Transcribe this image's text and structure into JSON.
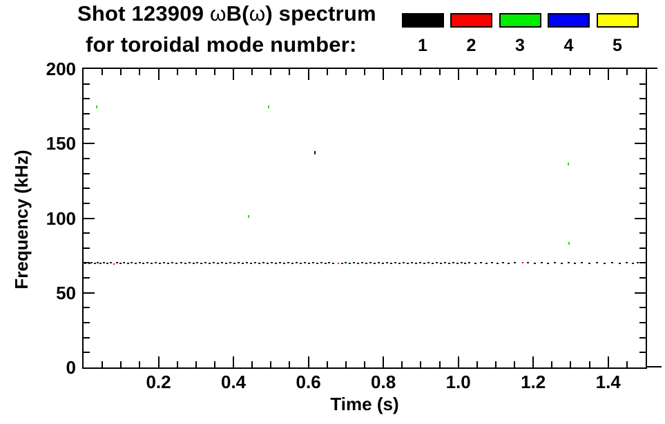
{
  "title": {
    "line1_pre": "Shot 123909 ",
    "line1_omega1": "ω",
    "line1_mid": "B(",
    "line1_omega2": "ω",
    "line1_post": ") spectrum",
    "line2": "for toroidal mode number:"
  },
  "legend": {
    "entries": [
      {
        "label": "1",
        "color": "#000000"
      },
      {
        "label": "2",
        "color": "#ff0000"
      },
      {
        "label": "3",
        "color": "#00ee00"
      },
      {
        "label": "4",
        "color": "#0000ff"
      },
      {
        "label": "5",
        "color": "#ffff00"
      }
    ]
  },
  "chart_data": {
    "type": "scatter",
    "title": "Shot 123909 ωB(ω) spectrum for toroidal mode number: 1 2 3 4 5",
    "xlabel": "Time (s)",
    "ylabel": "Frequency (kHz)",
    "xlim": [
      0,
      1.5
    ],
    "ylim": [
      0,
      200
    ],
    "x_major_ticks": [
      0.2,
      0.4,
      0.6,
      0.8,
      1.0,
      1.2,
      1.4
    ],
    "x_tick_labels": [
      "0.2",
      "0.4",
      "0.6",
      "0.8",
      "1.0",
      "1.2",
      "1.4"
    ],
    "x_minor_step": 0.05,
    "y_major_ticks": [
      0,
      50,
      100,
      150,
      200
    ],
    "y_tick_labels": [
      "0",
      "50",
      "100",
      "150",
      "200"
    ],
    "y_minor_step": 10,
    "grid": false,
    "legend_position": "top-right",
    "series": [
      {
        "name": "toroidal mode n=1",
        "color": "#1a1a1a",
        "marker": [
          3,
          2
        ],
        "points": [
          [
            0.004,
            69.8
          ],
          [
            0.01,
            70.0
          ],
          [
            0.016,
            69.7
          ],
          [
            0.022,
            70.1
          ],
          [
            0.03,
            69.9
          ],
          [
            0.037,
            70.0
          ],
          [
            0.046,
            69.8
          ],
          [
            0.055,
            70.1
          ],
          [
            0.064,
            69.9
          ],
          [
            0.072,
            70.0
          ],
          [
            0.09,
            70.1
          ],
          [
            0.099,
            69.9
          ],
          [
            0.108,
            70.0
          ],
          [
            0.118,
            69.8
          ],
          [
            0.128,
            70.1
          ],
          [
            0.139,
            69.9
          ],
          [
            0.15,
            70.0
          ],
          [
            0.16,
            69.6
          ],
          [
            0.17,
            70.1
          ],
          [
            0.181,
            69.9
          ],
          [
            0.192,
            70.0
          ],
          [
            0.203,
            69.8
          ],
          [
            0.214,
            70.1
          ],
          [
            0.225,
            69.9
          ],
          [
            0.237,
            70.0
          ],
          [
            0.248,
            69.7
          ],
          [
            0.26,
            70.1
          ],
          [
            0.271,
            69.9
          ],
          [
            0.282,
            70.0
          ],
          [
            0.293,
            69.8
          ],
          [
            0.304,
            70.1
          ],
          [
            0.315,
            69.9
          ],
          [
            0.326,
            70.0
          ],
          [
            0.337,
            69.7
          ],
          [
            0.348,
            70.1
          ],
          [
            0.359,
            69.9
          ],
          [
            0.37,
            70.0
          ],
          [
            0.381,
            69.8
          ],
          [
            0.392,
            70.1
          ],
          [
            0.403,
            69.9
          ],
          [
            0.414,
            70.0
          ],
          [
            0.425,
            69.7
          ],
          [
            0.436,
            70.1
          ],
          [
            0.447,
            69.9
          ],
          [
            0.458,
            70.0
          ],
          [
            0.469,
            69.8
          ],
          [
            0.48,
            70.1
          ],
          [
            0.491,
            69.9
          ],
          [
            0.502,
            70.0
          ],
          [
            0.513,
            69.7
          ],
          [
            0.524,
            70.1
          ],
          [
            0.535,
            69.9
          ],
          [
            0.546,
            70.0
          ],
          [
            0.557,
            69.8
          ],
          [
            0.568,
            70.1
          ],
          [
            0.579,
            69.9
          ],
          [
            0.59,
            70.0
          ],
          [
            0.601,
            69.7
          ],
          [
            0.612,
            70.1
          ],
          [
            0.623,
            69.9
          ],
          [
            0.634,
            70.0
          ],
          [
            0.645,
            69.8
          ],
          [
            0.656,
            70.1
          ],
          [
            0.667,
            69.9
          ],
          [
            0.69,
            69.7
          ],
          [
            0.7,
            70.1
          ],
          [
            0.711,
            69.9
          ],
          [
            0.722,
            70.0
          ],
          [
            0.733,
            69.8
          ],
          [
            0.744,
            70.1
          ],
          [
            0.755,
            69.9
          ],
          [
            0.766,
            70.0
          ],
          [
            0.777,
            69.7
          ],
          [
            0.788,
            70.1
          ],
          [
            0.799,
            69.9
          ],
          [
            0.81,
            70.0
          ],
          [
            0.821,
            69.8
          ],
          [
            0.832,
            70.1
          ],
          [
            0.843,
            69.9
          ],
          [
            0.854,
            70.0
          ],
          [
            0.865,
            69.7
          ],
          [
            0.876,
            70.1
          ],
          [
            0.887,
            69.9
          ],
          [
            0.898,
            70.0
          ],
          [
            0.909,
            69.8
          ],
          [
            0.92,
            70.1
          ],
          [
            0.931,
            69.9
          ],
          [
            0.942,
            70.0
          ],
          [
            0.953,
            69.7
          ],
          [
            0.964,
            70.1
          ],
          [
            0.975,
            69.9
          ],
          [
            0.986,
            70.0
          ],
          [
            0.997,
            69.8
          ],
          [
            1.008,
            70.1
          ],
          [
            1.019,
            69.9
          ],
          [
            1.03,
            70.0
          ],
          [
            1.045,
            69.7
          ],
          [
            1.06,
            70.1
          ],
          [
            1.075,
            69.9
          ],
          [
            1.09,
            70.0
          ],
          [
            1.105,
            69.8
          ],
          [
            1.12,
            70.1
          ],
          [
            1.135,
            69.9
          ],
          [
            1.15,
            70.0
          ],
          [
            1.186,
            70.1
          ],
          [
            1.204,
            69.9
          ],
          [
            1.222,
            70.0
          ],
          [
            1.24,
            69.8
          ],
          [
            1.258,
            70.1
          ],
          [
            1.276,
            69.9
          ],
          [
            1.294,
            70.0
          ],
          [
            1.312,
            69.8
          ],
          [
            1.33,
            70.1
          ],
          [
            1.35,
            69.9
          ],
          [
            1.37,
            70.0
          ],
          [
            1.39,
            69.8
          ],
          [
            1.41,
            70.1
          ],
          [
            1.43,
            69.9
          ],
          [
            1.45,
            70.0
          ],
          [
            1.465,
            69.8
          ],
          [
            1.478,
            70.0
          ],
          [
            0.617,
            144.1,
            2,
            5
          ]
        ]
      },
      {
        "name": "toroidal mode n=2",
        "color": "#ff0000",
        "marker": [
          2,
          2
        ],
        "points": [
          [
            0.081,
            69.5
          ],
          [
            0.68,
            69.9
          ],
          [
            1.172,
            70.2
          ]
        ]
      },
      {
        "name": "toroidal mode n=3",
        "color": "#00ee00",
        "marker": [
          2,
          4
        ],
        "points": [
          [
            0.035,
            174.8
          ],
          [
            0.494,
            174.8
          ],
          [
            0.44,
            101.2
          ],
          [
            1.294,
            136.3
          ],
          [
            1.295,
            83.1
          ]
        ]
      },
      {
        "name": "toroidal mode n=4",
        "color": "#0000ff",
        "marker": [
          2,
          2
        ],
        "points": []
      },
      {
        "name": "toroidal mode n=5",
        "color": "#ffff00",
        "marker": [
          2,
          2
        ],
        "points": []
      }
    ]
  }
}
